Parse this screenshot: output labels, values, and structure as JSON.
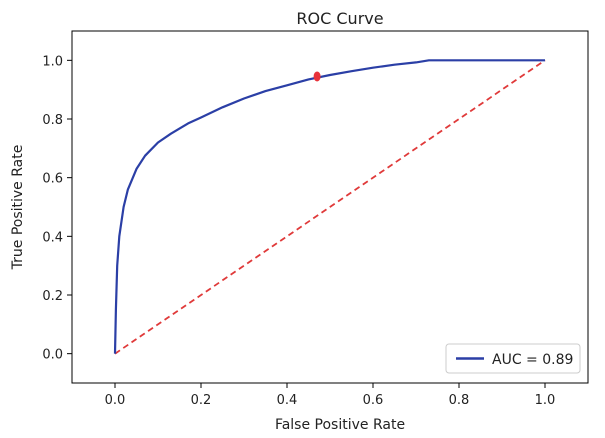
{
  "chart_data": {
    "type": "line",
    "title": "ROC Curve",
    "xlabel": "False Positive Rate",
    "ylabel": "True Positive Rate",
    "xlim": [
      -0.1,
      1.1
    ],
    "ylim": [
      -0.1,
      1.1
    ],
    "xticks": [
      "0.0",
      "0.2",
      "0.4",
      "0.6",
      "0.8",
      "1.0"
    ],
    "yticks": [
      "0.0",
      "0.2",
      "0.4",
      "0.6",
      "0.8",
      "1.0"
    ],
    "grid": false,
    "legend_position": "lower-right",
    "series": [
      {
        "name": "AUC = 0.89",
        "style": "solid",
        "color": "#2b3fa6",
        "x": [
          0.0,
          0.002,
          0.005,
          0.01,
          0.02,
          0.03,
          0.05,
          0.07,
          0.1,
          0.13,
          0.17,
          0.2,
          0.25,
          0.3,
          0.35,
          0.4,
          0.45,
          0.5,
          0.55,
          0.6,
          0.65,
          0.7,
          0.73,
          0.8,
          0.9,
          1.0
        ],
        "y": [
          0.0,
          0.15,
          0.3,
          0.4,
          0.5,
          0.56,
          0.63,
          0.675,
          0.72,
          0.75,
          0.785,
          0.805,
          0.84,
          0.87,
          0.895,
          0.915,
          0.935,
          0.95,
          0.963,
          0.975,
          0.985,
          0.993,
          1.0,
          1.0,
          1.0,
          1.0
        ]
      },
      {
        "name": "",
        "style": "dashed",
        "color": "#e03a3a",
        "x": [
          0.0,
          1.0
        ],
        "y": [
          0.0,
          1.0
        ]
      }
    ],
    "marker": {
      "x": 0.47,
      "y": 0.945,
      "color": "#e8323a"
    }
  }
}
